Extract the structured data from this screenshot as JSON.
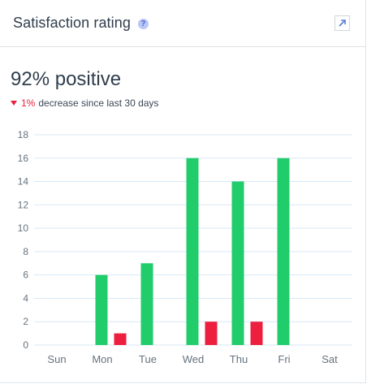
{
  "widget": {
    "title": "Satisfaction rating",
    "help_glyph": "?",
    "metric_value": "92%",
    "metric_label": "positive",
    "change_value": "1%",
    "change_text": "decrease since last 30 days"
  },
  "colors": {
    "positive": "#21cc6b",
    "negative": "#ee1f3e",
    "grid": "#d7e9f6",
    "axis_text": "#65727f"
  },
  "chart_data": {
    "type": "bar",
    "categories": [
      "Sun",
      "Mon",
      "Tue",
      "Wed",
      "Thu",
      "Fri",
      "Sat"
    ],
    "series": [
      {
        "values": [
          0,
          6,
          7,
          16,
          14,
          16,
          0
        ]
      },
      {
        "values": [
          0,
          1,
          0,
          2,
          2,
          0,
          0
        ]
      }
    ],
    "yticks": [
      0,
      2,
      4,
      6,
      8,
      10,
      12,
      14,
      16,
      18
    ],
    "ylim": [
      0,
      18
    ],
    "grid": true,
    "title": "",
    "xlabel": "",
    "ylabel": ""
  }
}
